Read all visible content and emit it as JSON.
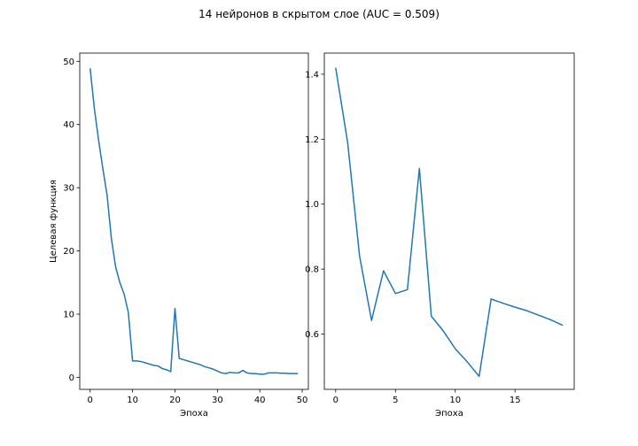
{
  "title": "14 нейронов в скрытом слое (AUC = 0.509)",
  "colors": {
    "line": "#1f77b4",
    "axes": "#000000",
    "background": "#ffffff"
  },
  "chart_data": [
    {
      "type": "line",
      "xlabel": "Эпоха",
      "ylabel": "Целевая функция",
      "xlim": [
        -2.45,
        51.45
      ],
      "ylim": [
        -1.9,
        51.3
      ],
      "xticks": [
        0,
        10,
        20,
        30,
        40,
        50
      ],
      "yticks": [
        0,
        10,
        20,
        30,
        40,
        50
      ],
      "grid": false,
      "series": [
        {
          "x": [
            0,
            1,
            2,
            3,
            4,
            5,
            6,
            7,
            8,
            9,
            10,
            11,
            12,
            13,
            14,
            15,
            16,
            17,
            18,
            19,
            20,
            21,
            22,
            23,
            24,
            25,
            26,
            27,
            28,
            29,
            30,
            31,
            32,
            33,
            34,
            35,
            36,
            37,
            38,
            39,
            40,
            41,
            42,
            43,
            44,
            45,
            46,
            47,
            48,
            49
          ],
          "values": [
            48.9,
            42.5,
            37.5,
            33.0,
            28.8,
            22.0,
            17.5,
            15.0,
            13.2,
            10.3,
            2.6,
            2.6,
            2.5,
            2.3,
            2.1,
            1.9,
            1.8,
            1.4,
            1.2,
            0.9,
            10.9,
            3.0,
            2.8,
            2.6,
            2.4,
            2.2,
            2.0,
            1.7,
            1.5,
            1.3,
            1.0,
            0.7,
            0.6,
            0.8,
            0.7,
            0.7,
            1.1,
            0.7,
            0.6,
            0.6,
            0.5,
            0.5,
            0.7,
            0.7,
            0.7,
            0.65,
            0.65,
            0.6,
            0.6,
            0.6
          ]
        }
      ]
    },
    {
      "type": "line",
      "xlabel": "Эпоха",
      "ylabel": "",
      "xlim": [
        -0.95,
        19.95
      ],
      "ylim": [
        0.43,
        1.465
      ],
      "xticks": [
        0,
        5,
        10,
        15
      ],
      "yticks": [
        0.6,
        0.8,
        1.0,
        1.2,
        1.4
      ],
      "grid": false,
      "series": [
        {
          "x": [
            0,
            1,
            2,
            3,
            4,
            5,
            6,
            7,
            8,
            9,
            10,
            11,
            12,
            13,
            14,
            15,
            16,
            17,
            18,
            19
          ],
          "values": [
            1.42,
            1.19,
            0.84,
            0.642,
            0.795,
            0.725,
            0.737,
            1.11,
            0.655,
            0.61,
            0.555,
            0.515,
            0.47,
            0.708,
            0.695,
            0.683,
            0.672,
            0.658,
            0.644,
            0.627
          ]
        }
      ]
    }
  ]
}
